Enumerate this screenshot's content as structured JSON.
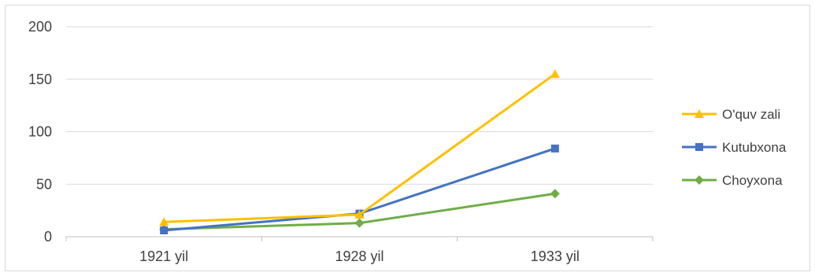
{
  "chart_data": {
    "type": "line",
    "categories": [
      "1921 yil",
      "1928 yil",
      "1933 yil"
    ],
    "ylim": [
      0,
      200
    ],
    "yticks": [
      0,
      50,
      100,
      150,
      200
    ],
    "grid": true,
    "legend_position": "right",
    "series": [
      {
        "name": "O'quv zali",
        "values": [
          14,
          21,
          155
        ],
        "color": "#ffc000",
        "marker": "triangle"
      },
      {
        "name": "Kutubxona",
        "values": [
          6,
          22,
          84
        ],
        "color": "#4472c4",
        "marker": "square"
      },
      {
        "name": "Choyxona",
        "values": [
          7,
          13,
          41
        ],
        "color": "#70ad47",
        "marker": "diamond"
      }
    ]
  }
}
